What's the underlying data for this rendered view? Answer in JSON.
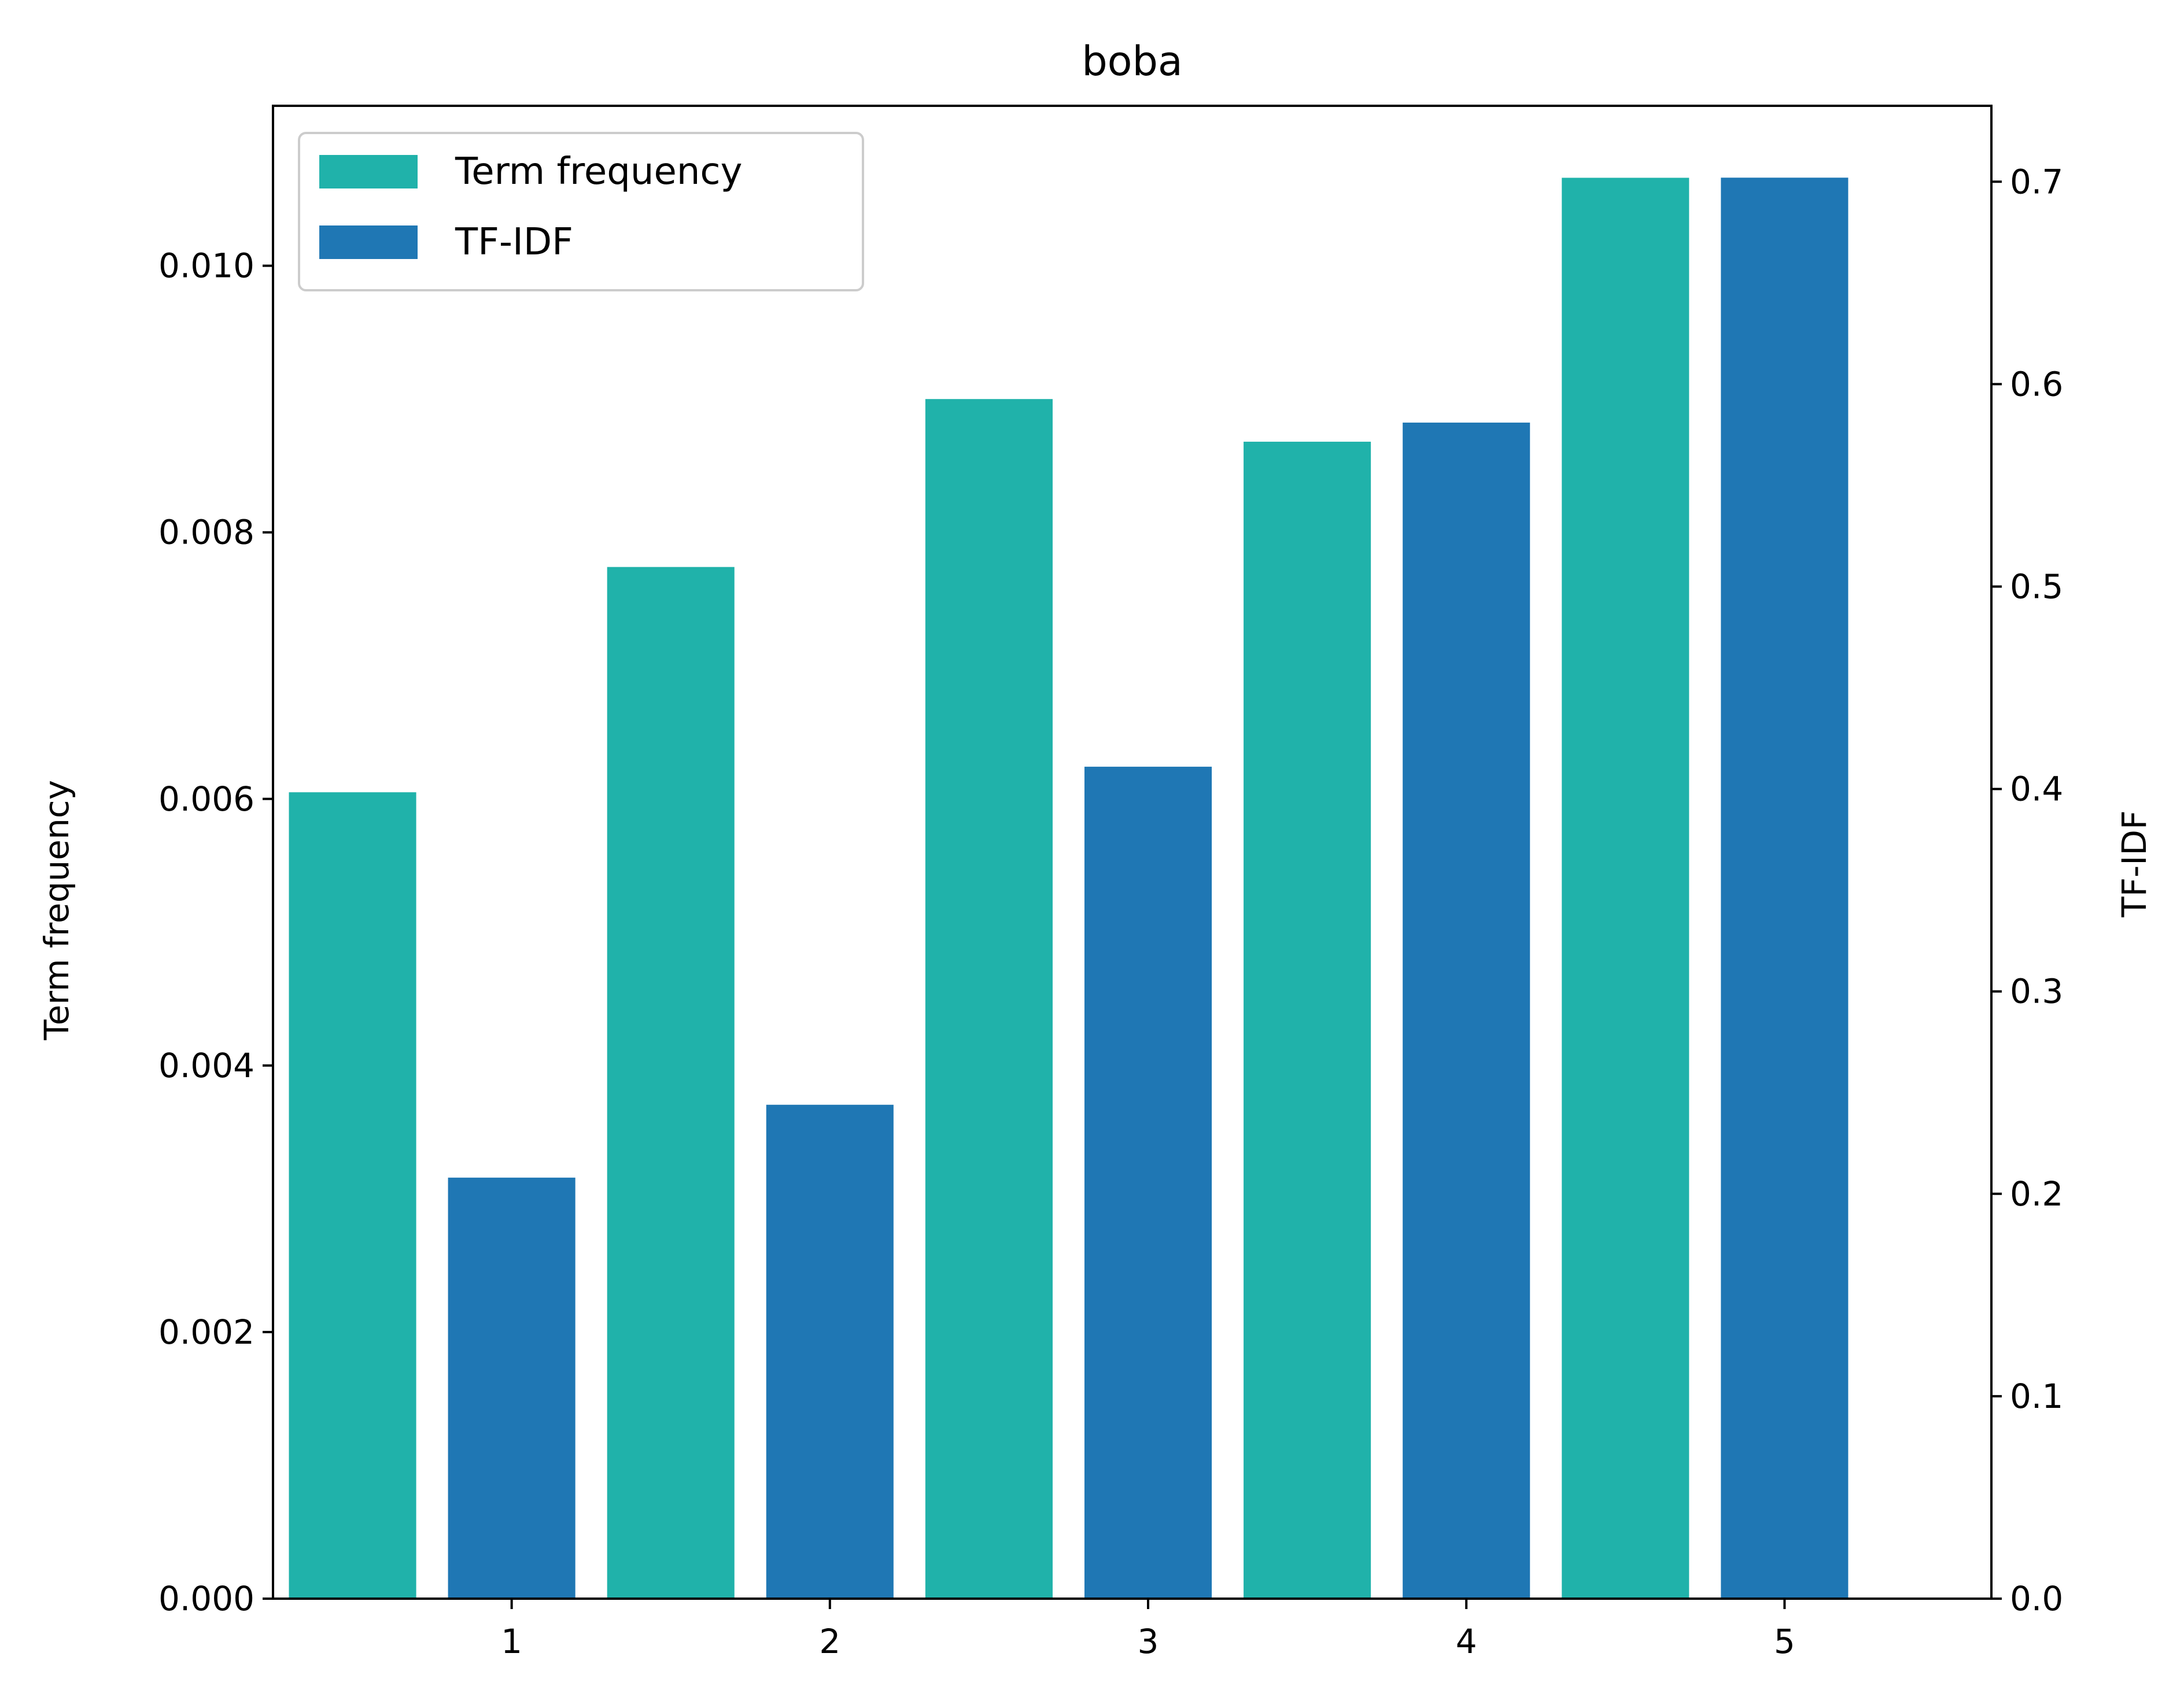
{
  "chart_data": {
    "type": "bar",
    "title": "boba",
    "categories": [
      "1",
      "2",
      "3",
      "4",
      "5"
    ],
    "ylabel_left": "Term frequency",
    "ylabel_right": "TF-IDF",
    "xlabel": "",
    "ylim_left": [
      0,
      0.0112
    ],
    "ylim_right": [
      0,
      0.7375
    ],
    "yticks_left": [
      "0.000",
      "0.002",
      "0.004",
      "0.006",
      "0.008",
      "0.010"
    ],
    "yticks_right": [
      "0.0",
      "0.1",
      "0.2",
      "0.3",
      "0.4",
      "0.5",
      "0.6",
      "0.7"
    ],
    "grid": false,
    "legend_position": "upper left",
    "series": [
      {
        "name": "Term frequency",
        "axis": "left",
        "color": "#20b2aa",
        "values": [
          0.00605,
          0.00774,
          0.009,
          0.00868,
          0.01066
        ]
      },
      {
        "name": "TF-IDF",
        "axis": "right",
        "color": "#1f77b4",
        "values": [
          0.208,
          0.244,
          0.411,
          0.581,
          0.702
        ]
      }
    ]
  }
}
